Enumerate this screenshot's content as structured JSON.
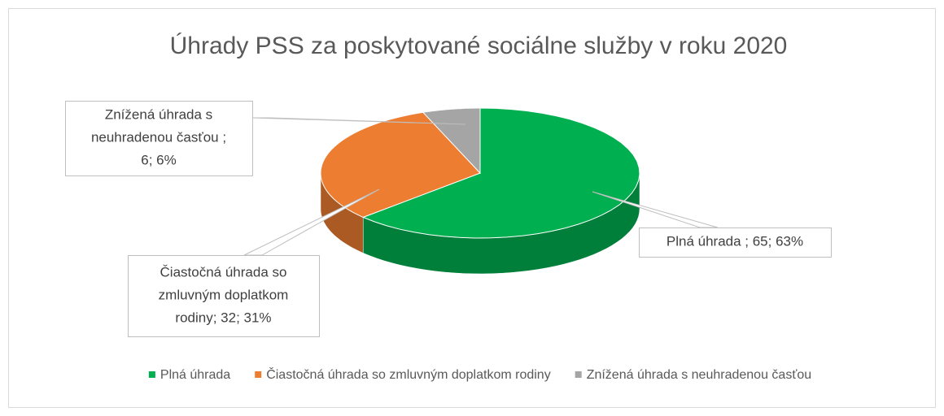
{
  "chart_data": {
    "type": "pie3d",
    "title": "Úhrady PSS za poskytované sociálne služby v roku 2020",
    "categories": [
      "Plná úhrada",
      "Čiastočná úhrada so zmluvným doplatkom rodiny",
      "Znížená úhrada s neuhradenou časťou"
    ],
    "values": [
      65,
      32,
      6
    ],
    "value_labels": [
      [
        "Plná úhrada ; 65; 63%"
      ],
      [
        "Čiastočná úhrada so",
        "zmluvným doplatkom",
        "rodiny; 32; 31%"
      ],
      [
        "Znížená úhrada s",
        "neuhradenou časťou ;",
        "6; 6%"
      ]
    ],
    "colors": [
      "#00b050",
      "#ed7d31",
      "#a5a5a5"
    ],
    "legend": "bottom"
  }
}
